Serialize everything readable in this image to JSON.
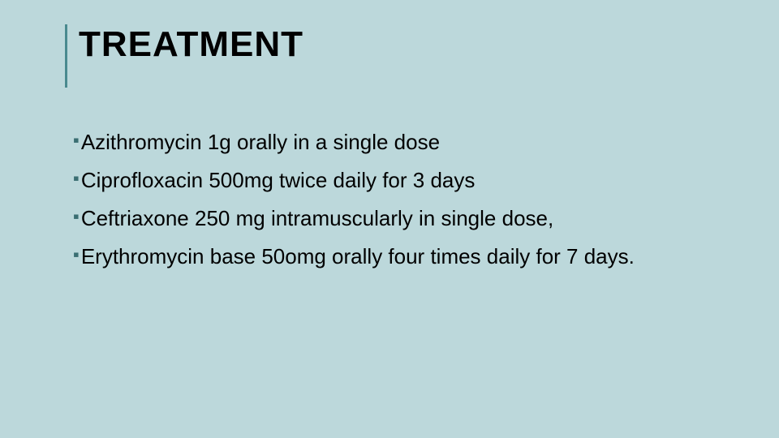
{
  "slide": {
    "background_color": "#bcd8db",
    "accent_color": "#4a8a8f",
    "text_color": "#000000",
    "title": "TREATMENT",
    "title_fontsize": 44,
    "title_fontweight": "bold",
    "body_fontsize": 26,
    "bullet_marker": "▪",
    "bullet_color": "#3a6e72",
    "bullets": [
      "Azithromycin 1g orally in a single dose",
      "Ciprofloxacin 500mg twice daily for 3 days",
      "Ceftriaxone 250 mg intramuscularly in single dose,",
      "Erythromycin base 50omg orally four times daily for 7 days."
    ]
  }
}
